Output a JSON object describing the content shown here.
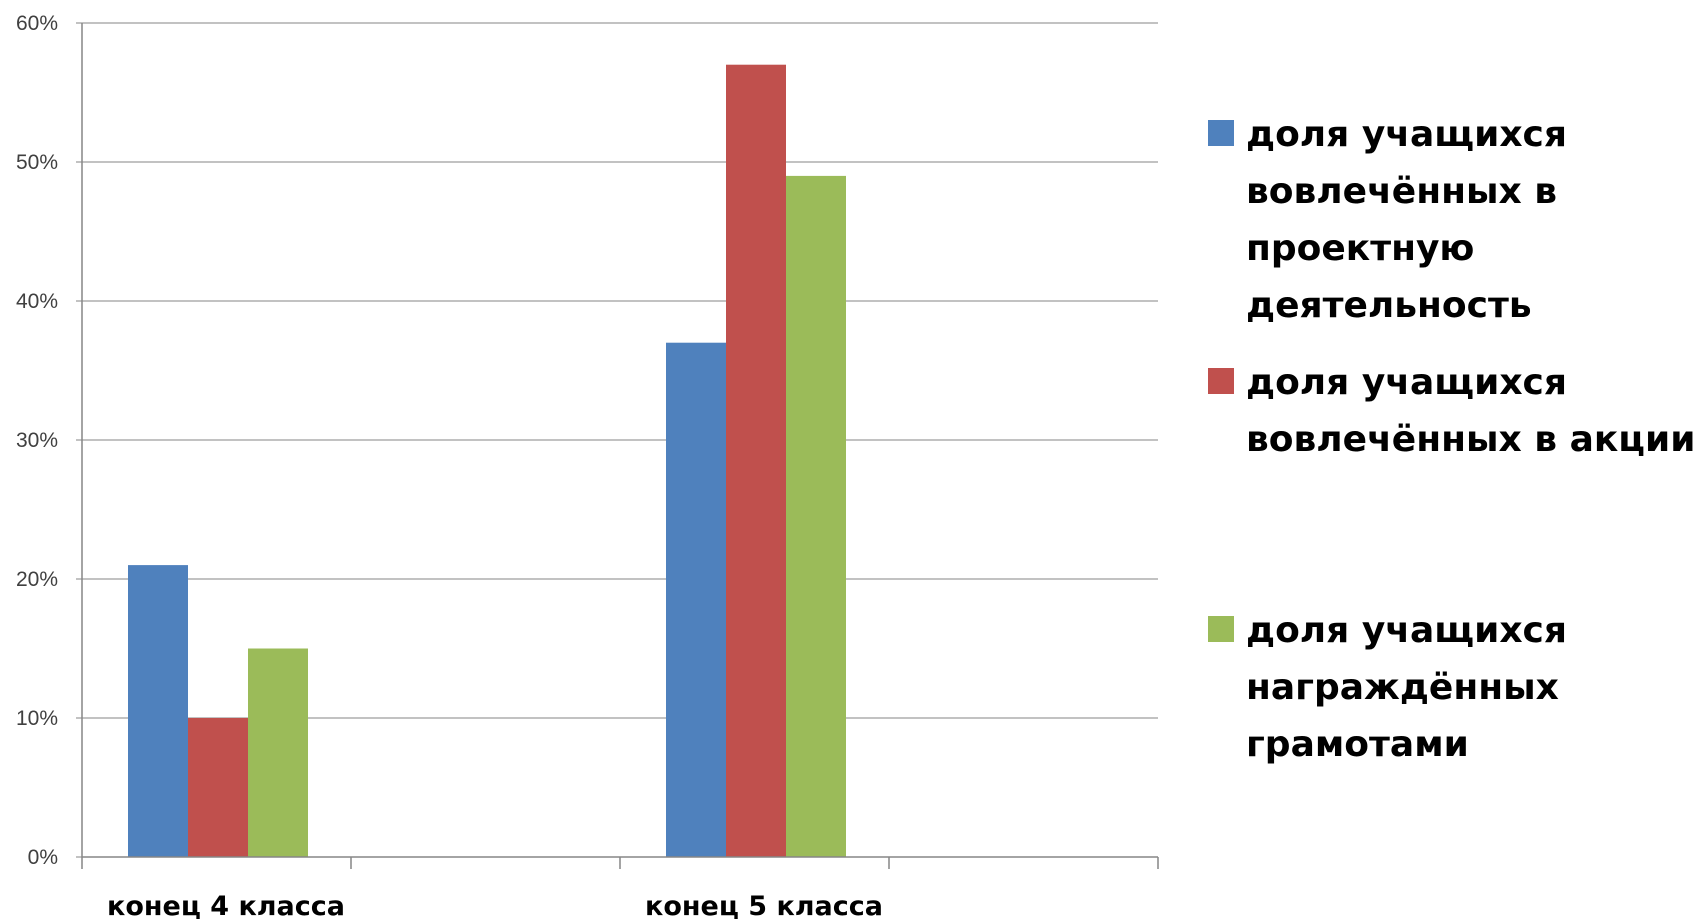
{
  "chart_data": {
    "type": "bar",
    "title": "",
    "xlabel": "",
    "ylabel": "",
    "categories": [
      "конец 4 класса",
      "конец 5 класса"
    ],
    "ylim": [
      0,
      0.6
    ],
    "yticks": [
      0,
      0.1,
      0.2,
      0.3,
      0.4,
      0.5,
      0.6
    ],
    "ytick_labels": [
      "0%",
      "10%",
      "20%",
      "30%",
      "40%",
      "50%",
      "60%"
    ],
    "grid": true,
    "legend_position": "right",
    "series": [
      {
        "name": "доля учащихся вовлечённых в проектную деятельность",
        "name_lines": [
          "доля учащихся",
          "вовлечённых в",
          "проектную",
          "деятельность"
        ],
        "color": "#4F81BD",
        "values": [
          0.21,
          0.37
        ]
      },
      {
        "name": "доля учащихся вовлечённых в акции",
        "name_lines": [
          "доля учащихся",
          "вовлечённых в акции"
        ],
        "color": "#C0504D",
        "values": [
          0.1,
          0.57
        ]
      },
      {
        "name": "доля учащихся награждённых грамотами",
        "name_lines": [
          "доля учащихся",
          "награждённых",
          "грамотами"
        ],
        "color": "#9BBB59",
        "values": [
          0.15,
          0.49
        ]
      }
    ]
  }
}
